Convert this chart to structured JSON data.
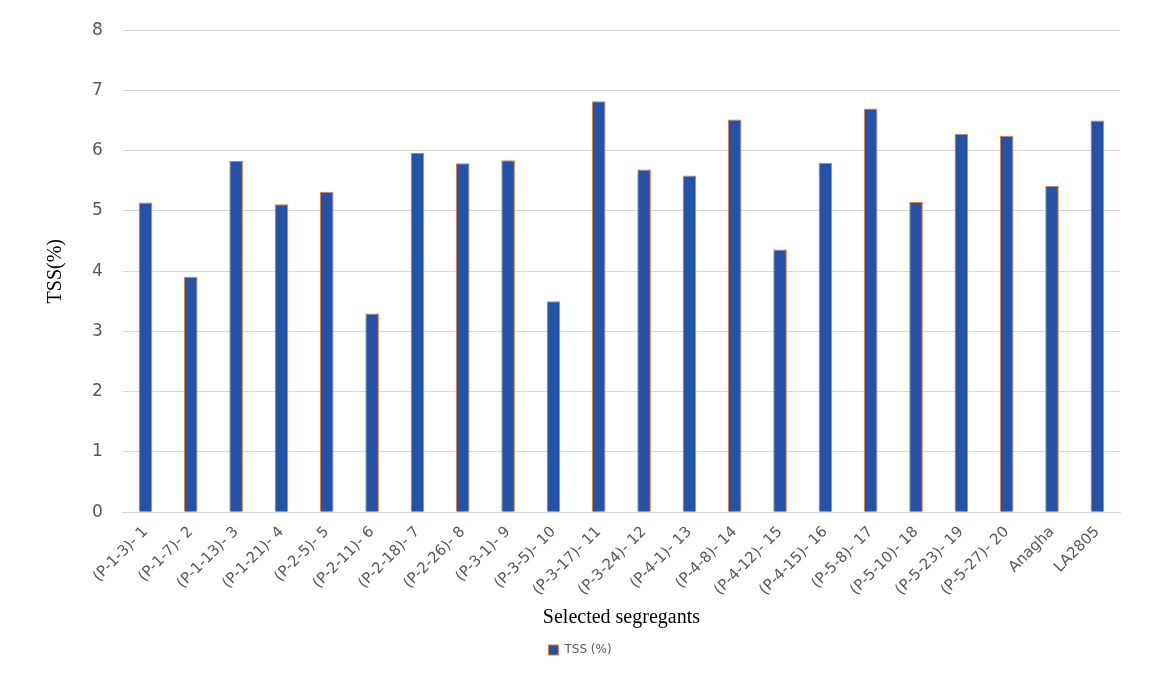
{
  "chart_data": {
    "type": "bar",
    "xlabel": "Selected segregants",
    "ylabel": "TSS(%)",
    "categories": [
      "(P-1-3)- 1",
      "(P-1-7)- 2",
      "(P-1-13)- 3",
      "(P-1-21)- 4",
      "(P-2-5)- 5",
      "(P-2-11)- 6",
      "(P-2-18)- 7",
      "(P-2-26)- 8",
      "(P-3-1)- 9",
      "(P-3-5)- 10",
      "(P-3-17)- 11",
      "(P-3-24)- 12",
      "(P-4-1)- 13",
      "(P-4-8)- 14",
      "(P-4-12)- 15",
      "(P-4-15)- 16",
      "(P-5-8)- 17",
      "(P-5-10)- 18",
      "(P-5-23)- 19",
      "(P-5-27)- 20",
      "Anagha",
      "LA2805"
    ],
    "series": [
      {
        "name": "TSS (%)",
        "color": "#2352a6",
        "values": [
          5.14,
          3.91,
          5.83,
          5.11,
          5.32,
          3.3,
          5.96,
          5.79,
          5.84,
          3.5,
          6.82,
          5.69,
          5.59,
          6.52,
          4.36,
          5.8,
          6.7,
          5.15,
          6.28,
          6.25,
          5.42,
          6.5
        ]
      }
    ],
    "ylim": [
      0,
      8
    ],
    "yticks": [
      0,
      1,
      2,
      3,
      4,
      5,
      6,
      7,
      8
    ],
    "grid": "y",
    "legend": "bottom"
  }
}
